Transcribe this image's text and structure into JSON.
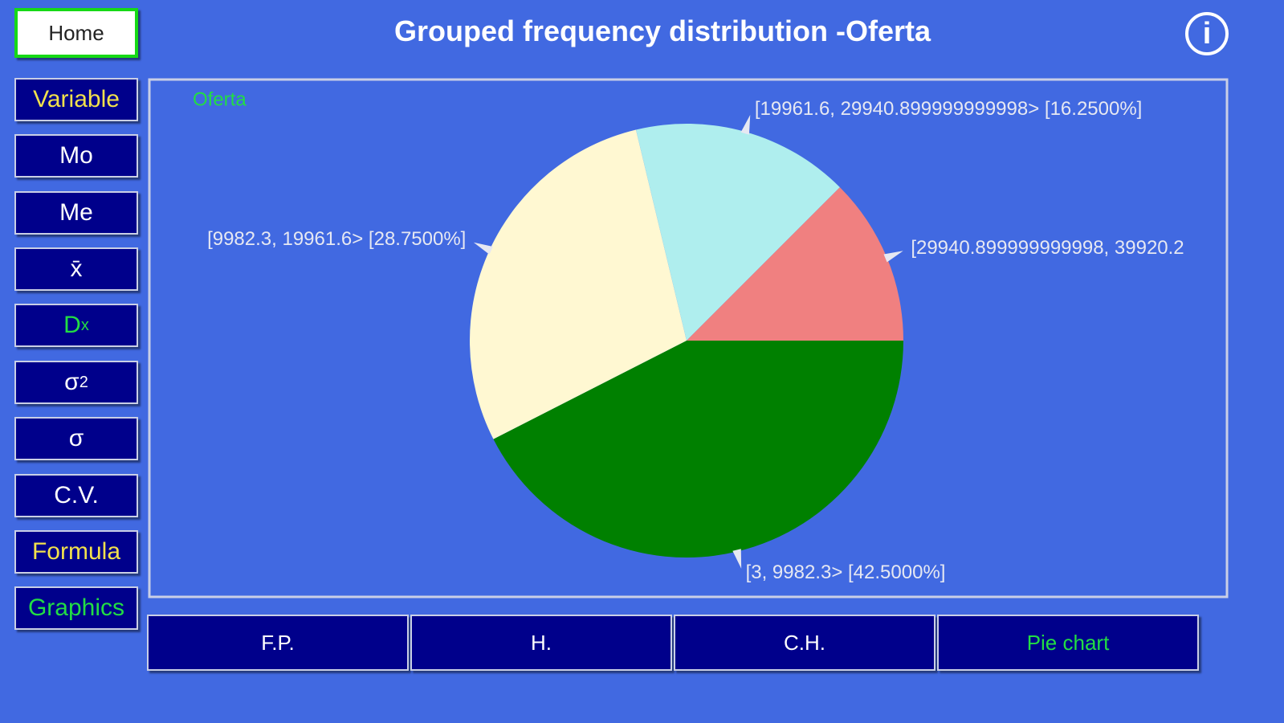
{
  "header": {
    "home": "Home",
    "title": "Grouped frequency distribution -Oferta",
    "info": "i"
  },
  "sidebar": {
    "buttons": [
      {
        "label": "Variable"
      },
      {
        "label": "Mo"
      },
      {
        "label": "Me"
      },
      {
        "label": "x̄"
      },
      {
        "label": "D",
        "sub": "x"
      },
      {
        "label": "σ",
        "sup": "2"
      },
      {
        "label": "σ"
      },
      {
        "label": "C.V."
      },
      {
        "label": "Formula"
      },
      {
        "label": "Graphics"
      }
    ]
  },
  "tabs": [
    "F.P.",
    "H.",
    "C.H.",
    "Pie chart"
  ],
  "chart_data": {
    "type": "pie",
    "categories": [
      "[3, 9982.3>",
      "[9982.3, 19961.6>",
      "[19961.6, 29940.899999999998>",
      "[29940.899999999998, 39920.2"
    ],
    "series": [
      {
        "name": "Oferta",
        "values": [
          42.5,
          28.75,
          16.25,
          12.5
        ],
        "value_labels": [
          "[42.5000%]",
          "[28.7500%]",
          "[16.2500%]",
          null
        ],
        "colors": [
          "#008000",
          "#fff8d2",
          "#afeeee",
          "#f08080"
        ]
      }
    ],
    "start_angle": 0,
    "direction": "clockwise"
  }
}
